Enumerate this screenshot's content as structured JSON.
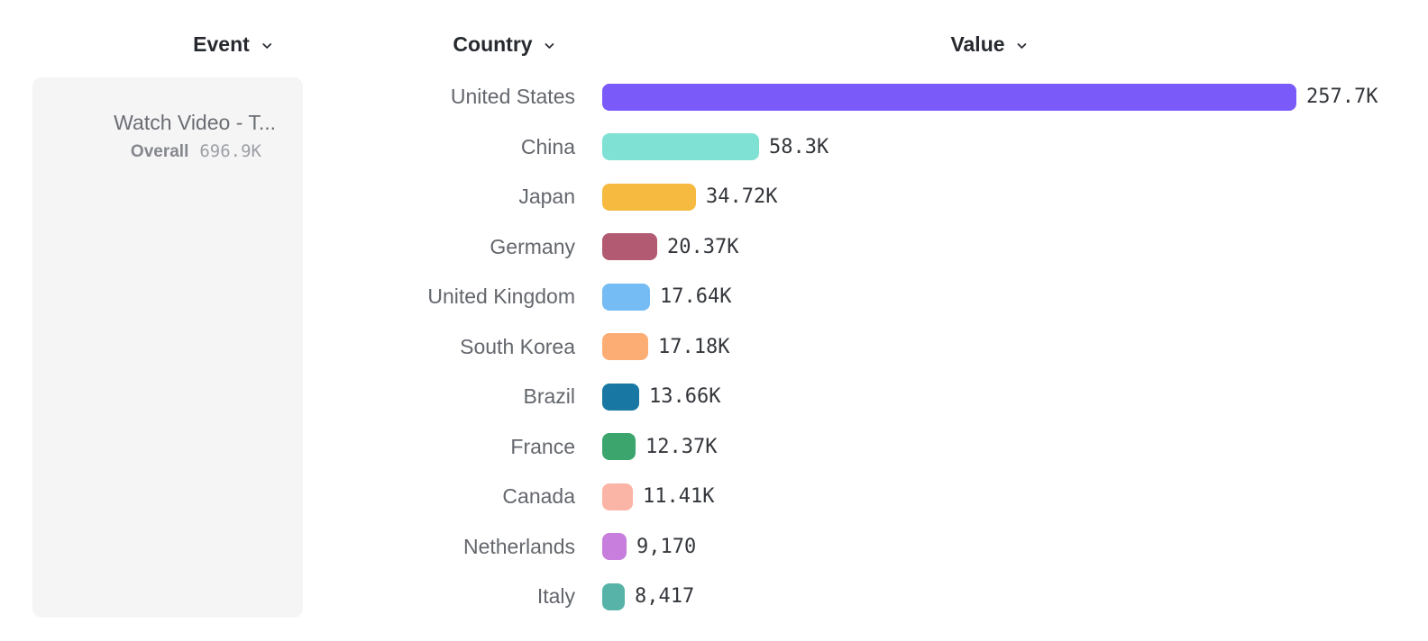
{
  "header": {
    "event_label": "Event",
    "country_label": "Country",
    "value_label": "Value"
  },
  "event_panel": {
    "title": "Watch Video - T...",
    "overall_label": "Overall",
    "overall_value": "696.9K"
  },
  "chart_data": {
    "type": "bar",
    "orientation": "horizontal",
    "title": "",
    "xlabel": "Value",
    "ylabel": "Country",
    "xlim": [
      0,
      257700
    ],
    "grid": false,
    "categories": [
      "United States",
      "China",
      "Japan",
      "Germany",
      "United Kingdom",
      "South Korea",
      "Brazil",
      "France",
      "Canada",
      "Netherlands",
      "Italy"
    ],
    "values": [
      257700,
      58300,
      34720,
      20370,
      17640,
      17180,
      13660,
      12370,
      11410,
      9170,
      8417
    ],
    "value_labels": [
      "257.7K",
      "58.3K",
      "34.72K",
      "20.37K",
      "17.64K",
      "17.18K",
      "13.66K",
      "12.37K",
      "11.41K",
      "9,170",
      "8,417"
    ],
    "colors": [
      "#7A5AF8",
      "#7FE1D4",
      "#F5BA3F",
      "#B25A71",
      "#74BCF3",
      "#FCAD74",
      "#1878A3",
      "#3BA56D",
      "#FBB5A6",
      "#C77EDD",
      "#57B2A7"
    ]
  },
  "ui_colors": {
    "panel_background": "#F5F5F6",
    "header_text": "#26292E",
    "country_label_text": "#63666C",
    "value_text": "#33363B",
    "event_title_text": "#6A6D73",
    "overall_label_text": "#84878D",
    "overall_value_text": "#9DA0A5"
  }
}
